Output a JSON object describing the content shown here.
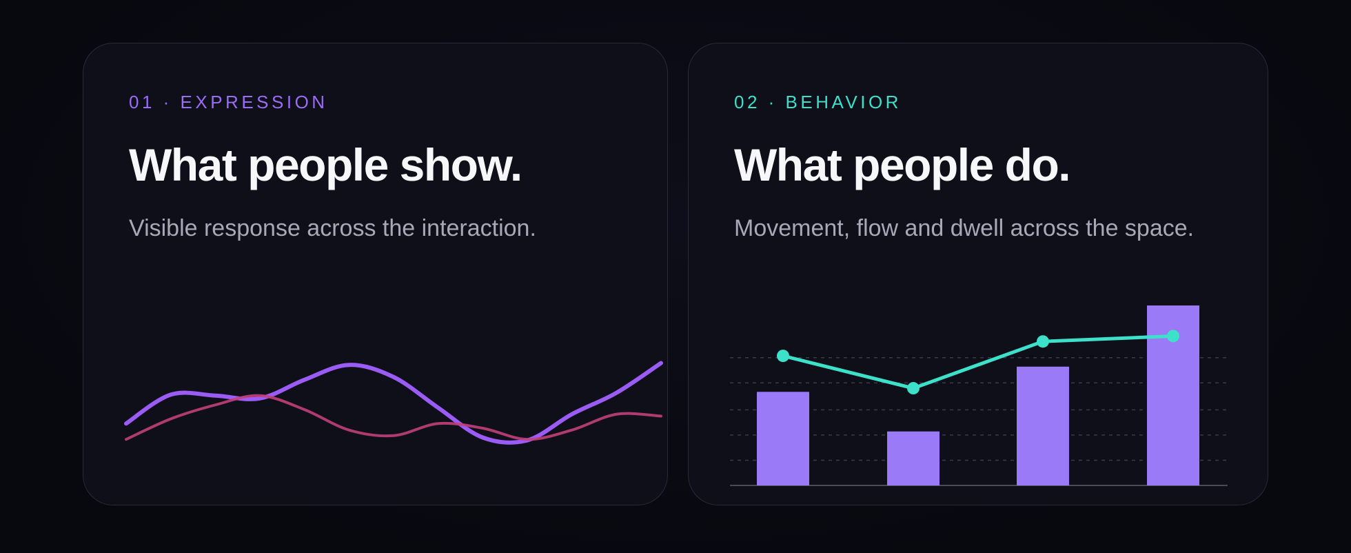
{
  "cards": [
    {
      "eyebrow": "01 · EXPRESSION",
      "title": "What people show.",
      "subtitle": "Visible response across the interaction.",
      "accent": "#9b6cf6"
    },
    {
      "eyebrow": "02 · BEHAVIOR",
      "title": "What people do.",
      "subtitle": "Movement, flow and dwell across the space.",
      "accent": "#3de0c8"
    }
  ],
  "chart_data": [
    {
      "type": "line",
      "x": [
        0,
        1,
        2,
        3,
        4,
        5,
        6,
        7,
        8,
        9,
        10,
        11,
        12
      ],
      "series": [
        {
          "color": "#9b5cf6",
          "values": [
            0.25,
            0.56,
            0.55,
            0.52,
            0.72,
            0.88,
            0.75,
            0.42,
            0.1,
            0.07,
            0.35,
            0.58,
            0.9
          ]
        },
        {
          "color": "#c2407a",
          "values": [
            0.08,
            0.3,
            0.45,
            0.55,
            0.4,
            0.18,
            0.12,
            0.25,
            0.2,
            0.08,
            0.18,
            0.35,
            0.33
          ]
        }
      ]
    },
    {
      "type": "bar",
      "categories": [
        "1",
        "2",
        "3",
        "4"
      ],
      "values": [
        0.52,
        0.3,
        0.66,
        1.0
      ],
      "bar_color": "#9b7af7",
      "line": {
        "color": "#3de0c8",
        "values": [
          0.72,
          0.54,
          0.8,
          0.83
        ]
      },
      "ylim": [
        0,
        1
      ],
      "grid": true
    }
  ]
}
